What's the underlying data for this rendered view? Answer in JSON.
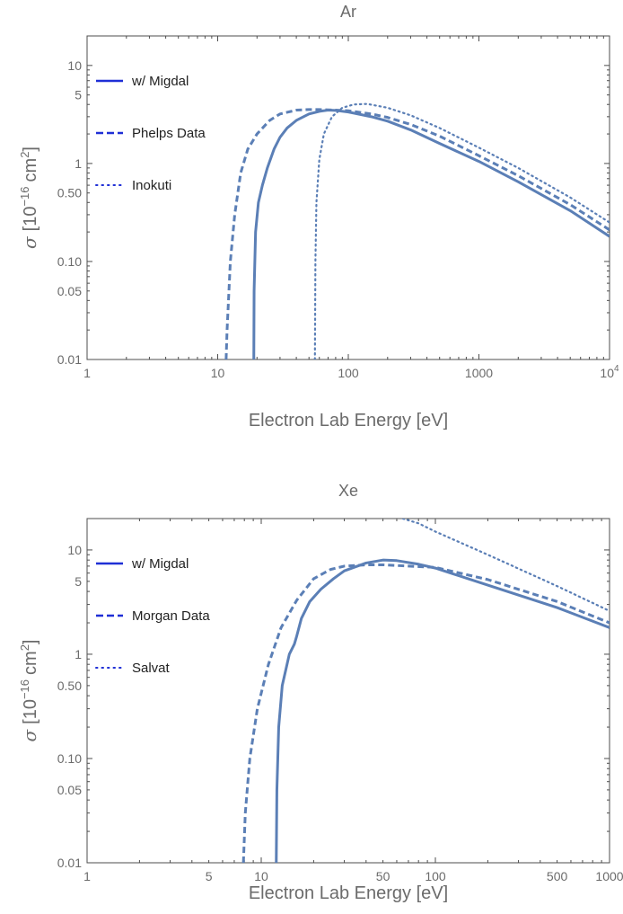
{
  "chart_data": [
    {
      "type": "line",
      "title": "Ar",
      "xlabel": "Electron Lab Energy [eV]",
      "ylabel": {
        "sigma": "σ",
        "open": "[10",
        "exp": "−16",
        "unit": "cm",
        "unit_exp": "2",
        "close": "]"
      },
      "x_scale": "log",
      "y_scale": "log",
      "xlim": [
        1,
        10000
      ],
      "ylim": [
        0.01,
        20
      ],
      "x_ticks": [
        {
          "value": 1,
          "label": "1"
        },
        {
          "value": 10,
          "label": "10"
        },
        {
          "value": 100,
          "label": "100"
        },
        {
          "value": 1000,
          "label": "1000"
        },
        {
          "value": 10000,
          "label": "10",
          "sup": "4"
        }
      ],
      "y_ticks": [
        {
          "value": 0.01,
          "label": "0.01"
        },
        {
          "value": 0.05,
          "label": "0.05"
        },
        {
          "value": 0.1,
          "label": "0.10"
        },
        {
          "value": 0.5,
          "label": "0.50"
        },
        {
          "value": 1,
          "label": "1"
        },
        {
          "value": 5,
          "label": "5"
        },
        {
          "value": 10,
          "label": "10"
        }
      ],
      "legend_position": "top-left",
      "series": [
        {
          "name": "w/ Migdal",
          "style": "solid",
          "points": [
            [
              18.9,
              0.01
            ],
            [
              19.0,
              0.05
            ],
            [
              19.5,
              0.2
            ],
            [
              20.5,
              0.4
            ],
            [
              22,
              0.6
            ],
            [
              24,
              0.9
            ],
            [
              27,
              1.4
            ],
            [
              30,
              1.85
            ],
            [
              34,
              2.3
            ],
            [
              40,
              2.75
            ],
            [
              50,
              3.2
            ],
            [
              60,
              3.4
            ],
            [
              70,
              3.5
            ],
            [
              80,
              3.48
            ],
            [
              100,
              3.35
            ],
            [
              150,
              3.0
            ],
            [
              200,
              2.7
            ],
            [
              300,
              2.2
            ],
            [
              500,
              1.6
            ],
            [
              1000,
              1.05
            ],
            [
              2000,
              0.65
            ],
            [
              5000,
              0.33
            ],
            [
              10000,
              0.18
            ]
          ]
        },
        {
          "name": "Phelps Data",
          "style": "dashed",
          "points": [
            [
              11.6,
              0.01
            ],
            [
              11.8,
              0.02
            ],
            [
              12.5,
              0.1
            ],
            [
              13.5,
              0.3
            ],
            [
              15,
              0.8
            ],
            [
              17,
              1.4
            ],
            [
              20,
              2.0
            ],
            [
              25,
              2.75
            ],
            [
              30,
              3.2
            ],
            [
              40,
              3.5
            ],
            [
              50,
              3.55
            ],
            [
              60,
              3.55
            ],
            [
              80,
              3.5
            ],
            [
              100,
              3.45
            ],
            [
              150,
              3.2
            ],
            [
              200,
              2.95
            ],
            [
              300,
              2.5
            ],
            [
              500,
              1.9
            ],
            [
              1000,
              1.2
            ],
            [
              2000,
              0.75
            ],
            [
              5000,
              0.38
            ],
            [
              10000,
              0.21
            ]
          ]
        },
        {
          "name": "Inokuti",
          "style": "dotted",
          "points": [
            [
              55.5,
              0.01
            ],
            [
              56,
              0.1
            ],
            [
              57,
              0.4
            ],
            [
              60,
              1.1
            ],
            [
              65,
              2.0
            ],
            [
              75,
              3.0
            ],
            [
              90,
              3.7
            ],
            [
              110,
              4.0
            ],
            [
              140,
              4.05
            ],
            [
              200,
              3.7
            ],
            [
              300,
              3.1
            ],
            [
              500,
              2.3
            ],
            [
              1000,
              1.45
            ],
            [
              2000,
              0.9
            ],
            [
              5000,
              0.45
            ],
            [
              10000,
              0.25
            ]
          ]
        }
      ]
    },
    {
      "type": "line",
      "title": "Xe",
      "xlabel": "Electron Lab Energy [eV]",
      "ylabel": {
        "sigma": "σ",
        "open": "[10",
        "exp": "−16",
        "unit": "cm",
        "unit_exp": "2",
        "close": "]"
      },
      "x_scale": "log",
      "y_scale": "log",
      "xlim": [
        1,
        1000
      ],
      "ylim": [
        0.01,
        20
      ],
      "x_ticks": [
        {
          "value": 1,
          "label": "1"
        },
        {
          "value": 5,
          "label": "5"
        },
        {
          "value": 10,
          "label": "10"
        },
        {
          "value": 50,
          "label": "50"
        },
        {
          "value": 100,
          "label": "100"
        },
        {
          "value": 500,
          "label": "500"
        },
        {
          "value": 1000,
          "label": "1000"
        }
      ],
      "y_ticks": [
        {
          "value": 0.01,
          "label": "0.01"
        },
        {
          "value": 0.05,
          "label": "0.05"
        },
        {
          "value": 0.1,
          "label": "0.10"
        },
        {
          "value": 0.5,
          "label": "0.50"
        },
        {
          "value": 1,
          "label": "1"
        },
        {
          "value": 5,
          "label": "5"
        },
        {
          "value": 10,
          "label": "10"
        }
      ],
      "legend_position": "top-left",
      "series": [
        {
          "name": "w/ Migdal",
          "style": "solid",
          "points": [
            [
              12.2,
              0.01
            ],
            [
              12.3,
              0.05
            ],
            [
              12.6,
              0.2
            ],
            [
              13.2,
              0.5
            ],
            [
              14.5,
              1.0
            ],
            [
              15.5,
              1.25
            ],
            [
              16,
              1.5
            ],
            [
              17,
              2.2
            ],
            [
              19,
              3.2
            ],
            [
              22,
              4.2
            ],
            [
              26,
              5.3
            ],
            [
              30,
              6.3
            ],
            [
              40,
              7.5
            ],
            [
              50,
              8.0
            ],
            [
              60,
              7.9
            ],
            [
              80,
              7.3
            ],
            [
              100,
              6.7
            ],
            [
              200,
              4.6
            ],
            [
              500,
              2.8
            ],
            [
              1000,
              1.8
            ]
          ]
        },
        {
          "name": "Morgan Data",
          "style": "dashed",
          "points": [
            [
              7.9,
              0.01
            ],
            [
              8.1,
              0.03
            ],
            [
              8.6,
              0.1
            ],
            [
              9.5,
              0.3
            ],
            [
              11,
              0.8
            ],
            [
              13,
              1.8
            ],
            [
              16,
              3.3
            ],
            [
              20,
              5.3
            ],
            [
              25,
              6.5
            ],
            [
              30,
              7.0
            ],
            [
              40,
              7.2
            ],
            [
              50,
              7.2
            ],
            [
              70,
              7.0
            ],
            [
              100,
              6.8
            ],
            [
              200,
              5.2
            ],
            [
              500,
              3.2
            ],
            [
              1000,
              2.0
            ]
          ]
        },
        {
          "name": "Salvat",
          "style": "dotted",
          "points": [
            [
              65,
              20
            ],
            [
              80,
              18
            ],
            [
              100,
              15
            ],
            [
              200,
              9
            ],
            [
              500,
              4.5
            ],
            [
              1000,
              2.6
            ]
          ]
        }
      ]
    }
  ]
}
